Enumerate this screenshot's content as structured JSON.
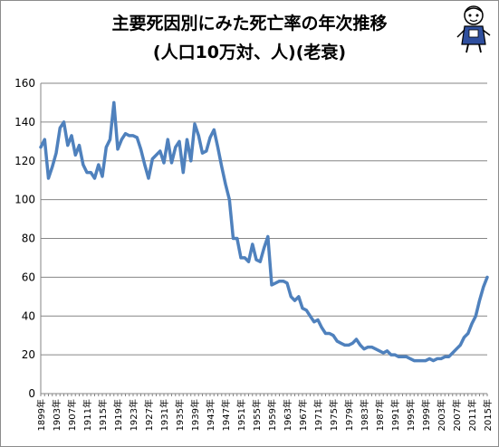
{
  "title_line_1": "主要死因別にみた死亡率の年次推移",
  "title_line_2": "(人口10万対、人)(老衰)",
  "chart_data": {
    "type": "line",
    "title": "主要死因別にみた死亡率の年次推移 (人口10万対、人)(老衰)",
    "xlabel": "",
    "ylabel": "",
    "ylim": [
      0,
      160
    ],
    "yticks": [
      0,
      20,
      40,
      60,
      80,
      100,
      120,
      140,
      160
    ],
    "x_tick_labels": [
      "1899年",
      "1903年",
      "1907年",
      "1911年",
      "1915年",
      "1919年",
      "1923年",
      "1927年",
      "1931年",
      "1935年",
      "1939年",
      "1943年",
      "1947年",
      "1951年",
      "1955年",
      "1959年",
      "1963年",
      "1967年",
      "1971年",
      "1975年",
      "1979年",
      "1983年",
      "1987年",
      "1991年",
      "1995年",
      "1999年",
      "2003年",
      "2007年",
      "2011年",
      "2015年"
    ],
    "grid": "horizontal",
    "legend": "none",
    "line_color": "#4f81bd",
    "series": [
      {
        "values": [
          [
            1899,
            127
          ],
          [
            1900,
            131
          ],
          [
            1901,
            111
          ],
          [
            1902,
            117
          ],
          [
            1903,
            124
          ],
          [
            1904,
            137
          ],
          [
            1905,
            140
          ],
          [
            1906,
            128
          ],
          [
            1907,
            133
          ],
          [
            1908,
            123
          ],
          [
            1909,
            128
          ],
          [
            1910,
            118
          ],
          [
            1911,
            114
          ],
          [
            1912,
            114
          ],
          [
            1913,
            111
          ],
          [
            1914,
            118
          ],
          [
            1915,
            112
          ],
          [
            1916,
            127
          ],
          [
            1917,
            131
          ],
          [
            1918,
            150
          ],
          [
            1919,
            126
          ],
          [
            1920,
            131
          ],
          [
            1921,
            134
          ],
          [
            1922,
            133
          ],
          [
            1923,
            133
          ],
          [
            1924,
            132
          ],
          [
            1925,
            126
          ],
          [
            1926,
            118
          ],
          [
            1927,
            111
          ],
          [
            1928,
            121
          ],
          [
            1929,
            123
          ],
          [
            1930,
            125
          ],
          [
            1931,
            119
          ],
          [
            1932,
            131
          ],
          [
            1933,
            119
          ],
          [
            1934,
            127
          ],
          [
            1935,
            130
          ],
          [
            1936,
            114
          ],
          [
            1937,
            131
          ],
          [
            1938,
            120
          ],
          [
            1939,
            139
          ],
          [
            1940,
            133
          ],
          [
            1941,
            124
          ],
          [
            1942,
            125
          ],
          [
            1943,
            132
          ],
          [
            1944,
            136
          ],
          [
            1945,
            127
          ],
          [
            1946,
            117
          ],
          [
            1947,
            108
          ],
          [
            1948,
            100
          ],
          [
            1949,
            80
          ],
          [
            1950,
            80
          ],
          [
            1951,
            70
          ],
          [
            1952,
            70
          ],
          [
            1953,
            68
          ],
          [
            1954,
            77
          ],
          [
            1955,
            69
          ],
          [
            1956,
            68
          ],
          [
            1957,
            75
          ],
          [
            1958,
            81
          ],
          [
            1959,
            56
          ],
          [
            1960,
            57
          ],
          [
            1961,
            58
          ],
          [
            1962,
            58
          ],
          [
            1963,
            57
          ],
          [
            1964,
            50
          ],
          [
            1965,
            48
          ],
          [
            1966,
            50
          ],
          [
            1967,
            44
          ],
          [
            1968,
            43
          ],
          [
            1969,
            40
          ],
          [
            1970,
            37
          ],
          [
            1971,
            38
          ],
          [
            1972,
            34
          ],
          [
            1973,
            31
          ],
          [
            1974,
            31
          ],
          [
            1975,
            30
          ],
          [
            1976,
            27
          ],
          [
            1977,
            26
          ],
          [
            1978,
            25
          ],
          [
            1979,
            25
          ],
          [
            1980,
            26
          ],
          [
            1981,
            28
          ],
          [
            1982,
            25
          ],
          [
            1983,
            23
          ],
          [
            1984,
            24
          ],
          [
            1985,
            24
          ],
          [
            1986,
            23
          ],
          [
            1987,
            22
          ],
          [
            1988,
            21
          ],
          [
            1989,
            22
          ],
          [
            1990,
            20
          ],
          [
            1991,
            20
          ],
          [
            1992,
            19
          ],
          [
            1993,
            19
          ],
          [
            1994,
            19
          ],
          [
            1995,
            18
          ],
          [
            1996,
            17
          ],
          [
            1997,
            17
          ],
          [
            1998,
            17
          ],
          [
            1999,
            17
          ],
          [
            2000,
            18
          ],
          [
            2001,
            17
          ],
          [
            2002,
            18
          ],
          [
            2003,
            18
          ],
          [
            2004,
            19
          ],
          [
            2005,
            19
          ],
          [
            2006,
            21
          ],
          [
            2007,
            23
          ],
          [
            2008,
            25
          ],
          [
            2009,
            29
          ],
          [
            2010,
            31
          ],
          [
            2011,
            36
          ],
          [
            2012,
            40
          ],
          [
            2013,
            48
          ],
          [
            2014,
            55
          ],
          [
            2015,
            60
          ]
        ]
      }
    ]
  }
}
